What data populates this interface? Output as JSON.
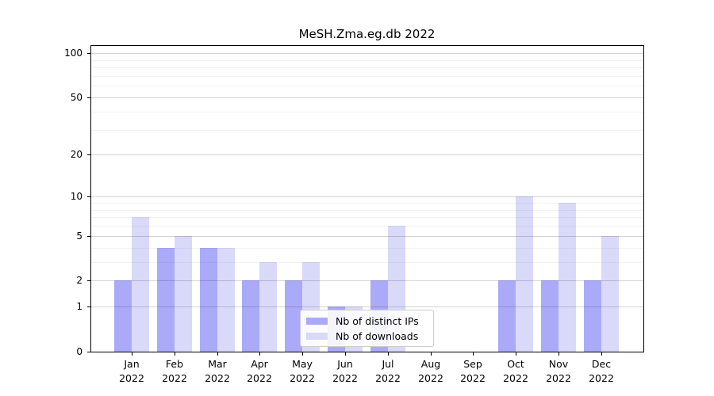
{
  "chart_data": {
    "type": "bar",
    "title": "MeSH.Zma.eg.db 2022",
    "categories": [
      "Jan 2022",
      "Feb 2022",
      "Mar 2022",
      "Apr 2022",
      "May 2022",
      "Jun 2022",
      "Jul 2022",
      "Aug 2022",
      "Sep 2022",
      "Oct 2022",
      "Nov 2022",
      "Dec 2022"
    ],
    "x_months": [
      "Jan",
      "Feb",
      "Mar",
      "Apr",
      "May",
      "Jun",
      "Jul",
      "Aug",
      "Sep",
      "Oct",
      "Nov",
      "Dec"
    ],
    "x_year": "2022",
    "series": [
      {
        "name": "Nb of distinct IPs",
        "color": "#aaaaf9",
        "values": [
          2,
          4,
          4,
          2,
          2,
          1,
          2,
          0,
          0,
          2,
          2,
          2
        ]
      },
      {
        "name": "Nb of downloads",
        "color": "#d9d9fa",
        "values": [
          7,
          5,
          4,
          3,
          3,
          1,
          6,
          0,
          0,
          10,
          9,
          5
        ]
      }
    ],
    "yscale": "log1p",
    "ylim": [
      0,
      112
    ],
    "yticks_major": [
      0,
      1,
      2,
      5,
      10,
      20,
      50,
      100
    ],
    "ytick_labels": [
      "0",
      "1",
      "2",
      "5",
      "10",
      "20",
      "50",
      "100"
    ],
    "yticks_minor": [
      3,
      4,
      6,
      7,
      8,
      9,
      30,
      40,
      60,
      70,
      80,
      90
    ],
    "grid": "on",
    "legend_position": "lower center",
    "xlabel": "",
    "ylabel": ""
  },
  "colors": {
    "background": "#ffffff",
    "axis": "#000000",
    "bar_dark": "#aaaaf9",
    "bar_light": "#d9d9fa",
    "grid_major": "#d4d4d4",
    "grid_minor": "#f2f2f2",
    "legend_border": "#cccccc"
  }
}
